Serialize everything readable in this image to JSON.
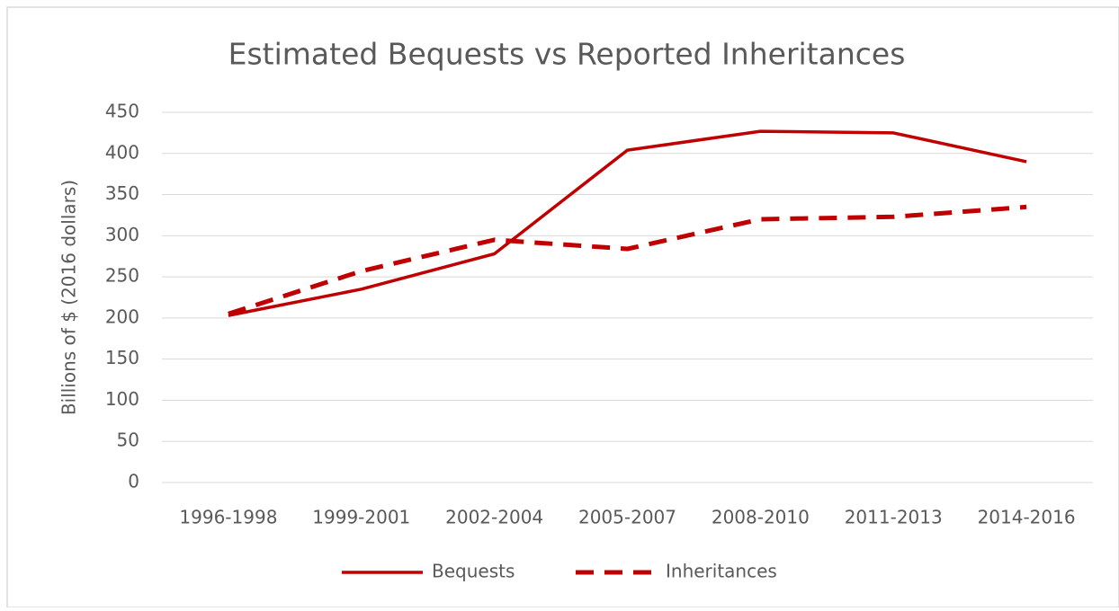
{
  "chart_data": {
    "type": "line",
    "title": "Estimated Bequests vs Reported Inheritances",
    "y_label": "Billions of $ (2016 dollars)",
    "categories": [
      "1996-1998",
      "1999-2001",
      "2002-2004",
      "2005-2007",
      "2008-2010",
      "2011-2013",
      "2014-2016"
    ],
    "series": [
      {
        "name": "Bequests",
        "color": "#c00000",
        "dash": false,
        "values": [
          203,
          235,
          278,
          404,
          427,
          425,
          390
        ]
      },
      {
        "name": "Inheritances",
        "color": "#c00000",
        "dash": true,
        "values": [
          205,
          257,
          295,
          284,
          320,
          323,
          335
        ]
      }
    ],
    "ylim": [
      0,
      450
    ],
    "yticks": [
      0,
      50,
      100,
      150,
      200,
      250,
      300,
      350,
      400,
      450
    ],
    "grid": true,
    "legend": "bottom"
  }
}
